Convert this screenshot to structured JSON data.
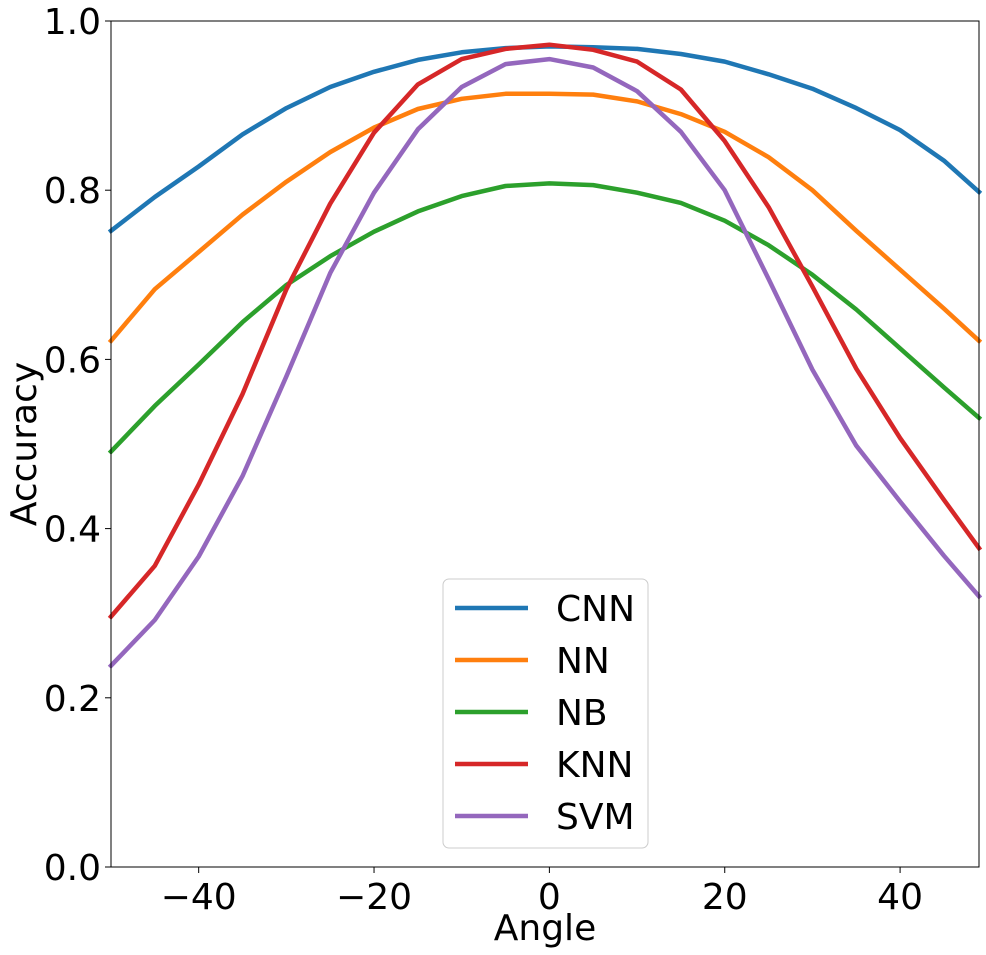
{
  "chart_data": {
    "type": "line",
    "xlabel": "Angle",
    "ylabel": "Accuracy",
    "xlim": [
      -50,
      49
    ],
    "ylim": [
      0.0,
      1.0
    ],
    "xticks": [
      -40,
      -20,
      0,
      20,
      40
    ],
    "xtick_labels": [
      "−40",
      "−20",
      "0",
      "20",
      "40"
    ],
    "yticks": [
      0.0,
      0.2,
      0.4,
      0.6,
      0.8,
      1.0
    ],
    "ytick_labels": [
      "0.0",
      "0.2",
      "0.4",
      "0.6",
      "0.8",
      "1.0"
    ],
    "grid": false,
    "legend_position": "bottom-center",
    "x": [
      -50,
      -45,
      -40,
      -35,
      -30,
      -25,
      -20,
      -15,
      -10,
      -5,
      0,
      5,
      10,
      15,
      20,
      25,
      30,
      35,
      40,
      45,
      49
    ],
    "series": [
      {
        "name": "CNN",
        "color": "#1f77b4",
        "values": [
          0.752,
          0.792,
          0.828,
          0.866,
          0.897,
          0.922,
          0.94,
          0.954,
          0.963,
          0.968,
          0.97,
          0.969,
          0.967,
          0.961,
          0.952,
          0.937,
          0.92,
          0.897,
          0.871,
          0.835,
          0.798
        ]
      },
      {
        "name": "NN",
        "color": "#ff7f0e",
        "values": [
          0.622,
          0.683,
          0.727,
          0.771,
          0.81,
          0.845,
          0.874,
          0.896,
          0.908,
          0.914,
          0.914,
          0.913,
          0.905,
          0.89,
          0.869,
          0.839,
          0.8,
          0.752,
          0.706,
          0.66,
          0.622
        ]
      },
      {
        "name": "NB",
        "color": "#2ca02c",
        "values": [
          0.491,
          0.545,
          0.594,
          0.644,
          0.688,
          0.722,
          0.751,
          0.775,
          0.793,
          0.805,
          0.808,
          0.806,
          0.797,
          0.785,
          0.764,
          0.735,
          0.7,
          0.659,
          0.613,
          0.567,
          0.531
        ]
      },
      {
        "name": "KNN",
        "color": "#d62728",
        "values": [
          0.296,
          0.356,
          0.452,
          0.559,
          0.683,
          0.784,
          0.868,
          0.925,
          0.955,
          0.967,
          0.972,
          0.966,
          0.952,
          0.919,
          0.858,
          0.78,
          0.686,
          0.589,
          0.507,
          0.434,
          0.377
        ]
      },
      {
        "name": "SVM",
        "color": "#9467bd",
        "values": [
          0.238,
          0.292,
          0.367,
          0.462,
          0.58,
          0.702,
          0.797,
          0.872,
          0.922,
          0.949,
          0.955,
          0.945,
          0.917,
          0.869,
          0.8,
          0.695,
          0.588,
          0.498,
          0.432,
          0.368,
          0.32
        ]
      }
    ]
  }
}
